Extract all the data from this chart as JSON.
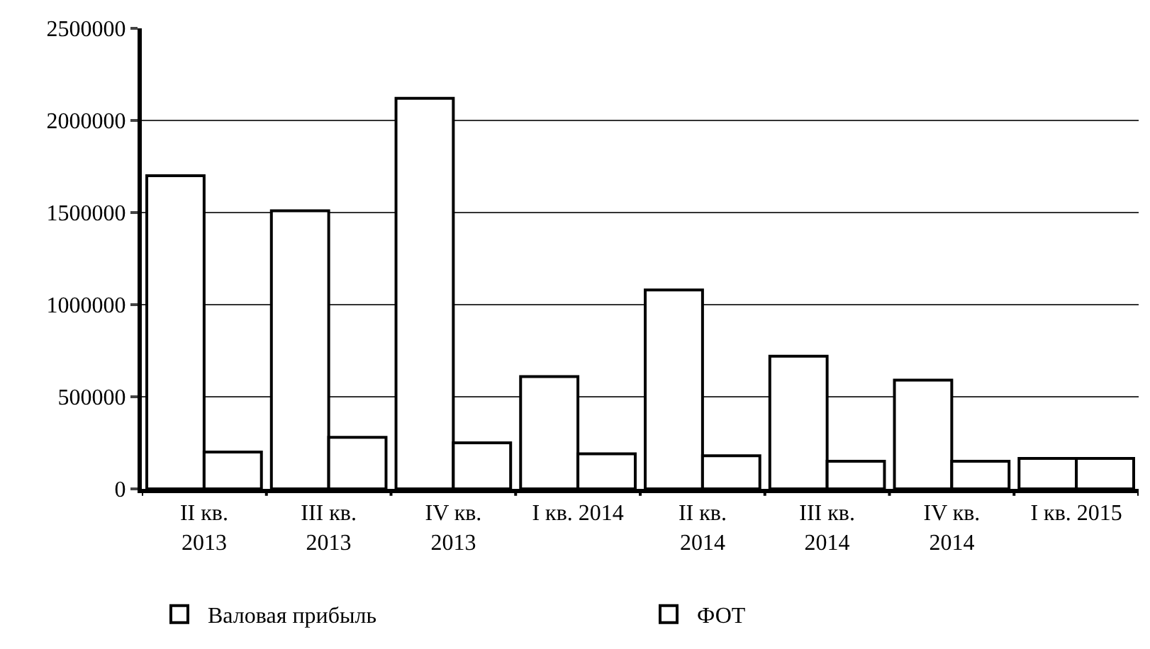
{
  "chart_data": {
    "type": "bar",
    "categories": [
      "II кв.\n2013",
      "III кв.\n2013",
      "IV кв.\n2013",
      "I кв. 2014",
      "II кв.\n2014",
      "III кв.\n2014",
      "IV кв.\n2014",
      "I кв. 2015"
    ],
    "series": [
      {
        "name": "Валовая прибыль",
        "color": "#ffffff",
        "values": [
          1700000,
          1510000,
          2120000,
          610000,
          1080000,
          720000,
          590000,
          165000
        ]
      },
      {
        "name": "ФОТ",
        "color": "#ffffff",
        "values": [
          200000,
          280000,
          250000,
          190000,
          180000,
          150000,
          150000,
          165000
        ]
      }
    ],
    "ylim": [
      0,
      2500000
    ],
    "yticks": [
      0,
      500000,
      1000000,
      1500000,
      2000000,
      2500000
    ],
    "grid": "y",
    "legend": "bottom"
  }
}
